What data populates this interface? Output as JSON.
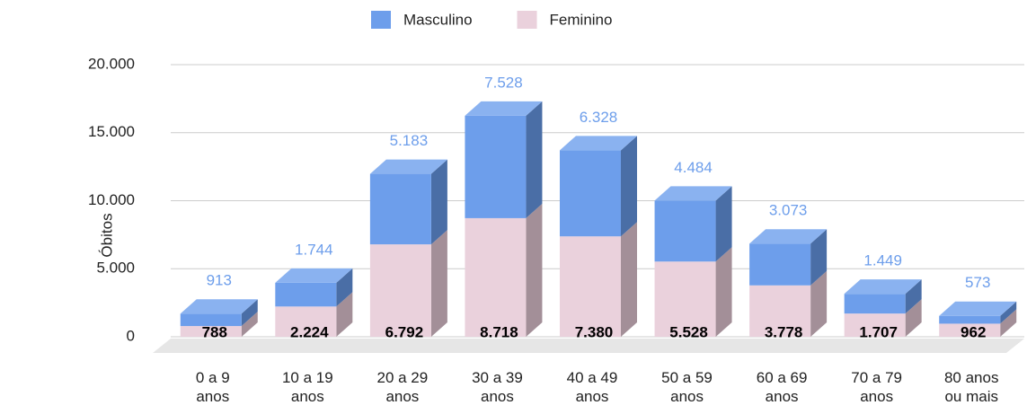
{
  "chart_data": {
    "type": "bar3d_stacked",
    "y_label": "Óbitos",
    "categories": [
      "0 a 9 anos",
      "10 a 19 anos",
      "20 a 29 anos",
      "30 a 39 anos",
      "40 a 49 anos",
      "50 a 59 anos",
      "60 a 69 anos",
      "70 a 79 anos",
      "80 anos ou mais"
    ],
    "series": [
      {
        "name": "Feminino",
        "color": "#ead1dc",
        "side": "#a38f98",
        "top": "#f3e3ea",
        "label_color": "#000000",
        "values": [
          788,
          2224,
          6792,
          8718,
          7380,
          5528,
          3778,
          1707,
          962
        ],
        "value_labels": [
          "788",
          "2.224",
          "6.792",
          "8.718",
          "7.380",
          "5.528",
          "3.778",
          "1.707",
          "962"
        ]
      },
      {
        "name": "Masculino",
        "color": "#6d9eeb",
        "side": "#4a6ea6",
        "top": "#8ab2f0",
        "label_color": "#6d9eeb",
        "values": [
          913,
          1744,
          5183,
          7528,
          6328,
          4484,
          3073,
          1449,
          573
        ],
        "value_labels": [
          "913",
          "1.744",
          "5.183",
          "7.528",
          "6.328",
          "4.484",
          "3.073",
          "1.449",
          "573"
        ]
      }
    ],
    "ylim": [
      0,
      20000
    ],
    "yticks": [
      0,
      {
        "value": 5000,
        "label": "5.000"
      },
      {
        "value": 10000,
        "label": "10.000"
      },
      {
        "value": 15000,
        "label": "15.000"
      },
      {
        "value": 20000,
        "label": "20.000"
      }
    ],
    "grid": true
  }
}
